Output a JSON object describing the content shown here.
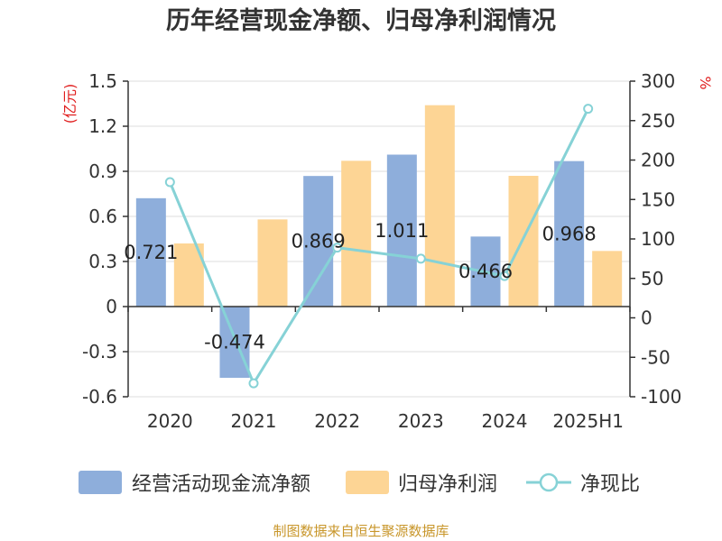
{
  "title": "历年经营现金净额、归母净利润情况",
  "source": "制图数据来自恒生聚源数据库",
  "colors": {
    "cash": "#8eaedb",
    "profit": "#fdd595",
    "ratio": "#86d2d6",
    "axis": "#333333",
    "grid": "#dddddd",
    "unit": "#e01e1e",
    "source": "#c8962a"
  },
  "chart_data": {
    "type": "bar",
    "categories": [
      "2020",
      "2021",
      "2022",
      "2023",
      "2024",
      "2025H1"
    ],
    "series": [
      {
        "name": "经营活动现金流净额",
        "type": "bar",
        "axis": "left",
        "values": [
          0.721,
          -0.474,
          0.869,
          1.011,
          0.466,
          0.968
        ],
        "labels": [
          "0.721",
          "-0.474",
          "0.869",
          "1.011",
          "0.466",
          "0.968"
        ]
      },
      {
        "name": "归母净利润",
        "type": "bar",
        "axis": "left",
        "values": [
          0.42,
          0.58,
          0.97,
          1.34,
          0.87,
          0.37
        ]
      },
      {
        "name": "净现比",
        "type": "line",
        "axis": "right",
        "values": [
          172,
          -83,
          89,
          75,
          53,
          265
        ]
      }
    ],
    "yleft": {
      "unit": "(亿元)",
      "ylim": [
        -0.6,
        1.5
      ],
      "ticks": [
        "1.5",
        "1.2",
        "0.9",
        "0.6",
        "0.3",
        "0",
        "-0.3",
        "-0.6"
      ]
    },
    "yright": {
      "unit": "%",
      "ylim": [
        -100,
        300
      ],
      "ticks": [
        "300",
        "250",
        "200",
        "150",
        "100",
        "50",
        "0",
        "-50",
        "-100"
      ]
    },
    "grid": true,
    "legend": "bottom"
  }
}
